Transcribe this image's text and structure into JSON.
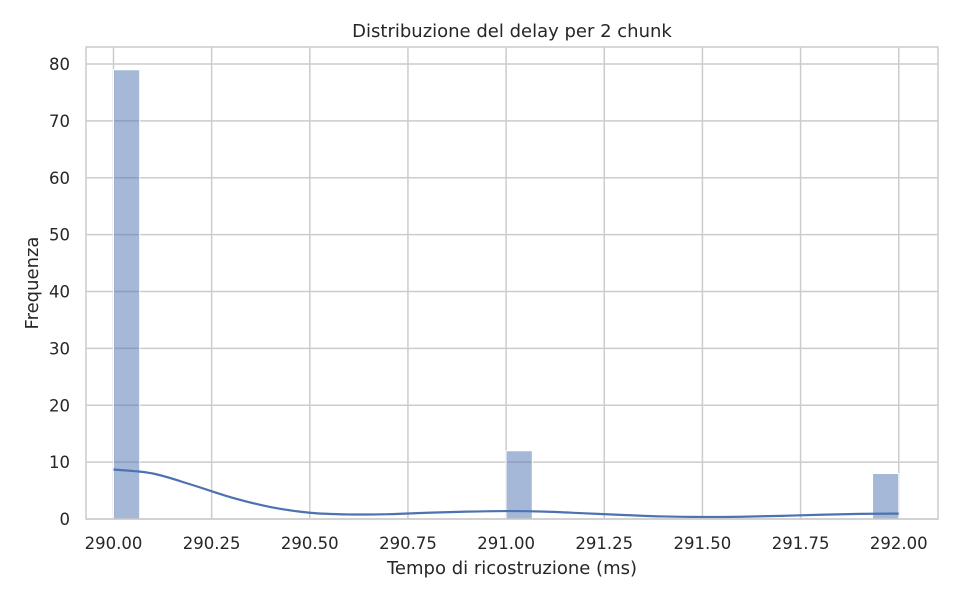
{
  "chart_data": {
    "type": "histogram",
    "title": "Distribuzione del delay per 2 chunk",
    "xlabel": "Tempo di ricostruzione (ms)",
    "ylabel": "Frequenza",
    "xlim": [
      289.93,
      292.1
    ],
    "ylim": [
      0,
      83
    ],
    "xticks": [
      290.0,
      290.25,
      290.5,
      290.75,
      291.0,
      291.25,
      291.5,
      291.75,
      292.0
    ],
    "xtick_labels": [
      "290.00",
      "290.25",
      "290.50",
      "290.75",
      "291.00",
      "291.25",
      "291.50",
      "291.75",
      "292.00"
    ],
    "yticks": [
      0,
      10,
      20,
      30,
      40,
      50,
      60,
      70,
      80
    ],
    "ytick_labels": [
      "0",
      "10",
      "20",
      "30",
      "40",
      "50",
      "60",
      "70",
      "80"
    ],
    "grid": true,
    "bin_width": 0.0667,
    "bars": [
      {
        "x_start": 290.0,
        "x_end": 290.0667,
        "count": 79
      },
      {
        "x_start": 291.0,
        "x_end": 291.0667,
        "count": 12
      },
      {
        "x_start": 291.9333,
        "x_end": 292.0,
        "count": 8
      }
    ],
    "kde": {
      "x": [
        290.0,
        290.1,
        290.2,
        290.3,
        290.4,
        290.5,
        290.6,
        290.7,
        290.8,
        290.9,
        291.0,
        291.1,
        291.2,
        291.3,
        291.4,
        291.5,
        291.6,
        291.7,
        291.8,
        291.9,
        292.0
      ],
      "y": [
        8.7,
        8.0,
        6.0,
        3.8,
        2.1,
        1.1,
        0.8,
        0.85,
        1.1,
        1.3,
        1.4,
        1.3,
        1.0,
        0.7,
        0.45,
        0.35,
        0.4,
        0.55,
        0.75,
        0.9,
        0.95
      ]
    },
    "colors": {
      "bar_fill": "#4c72b0",
      "bar_opacity": 0.5,
      "kde_line": "#4c72b0",
      "grid": "#cccccc",
      "background": "#ffffff"
    }
  }
}
